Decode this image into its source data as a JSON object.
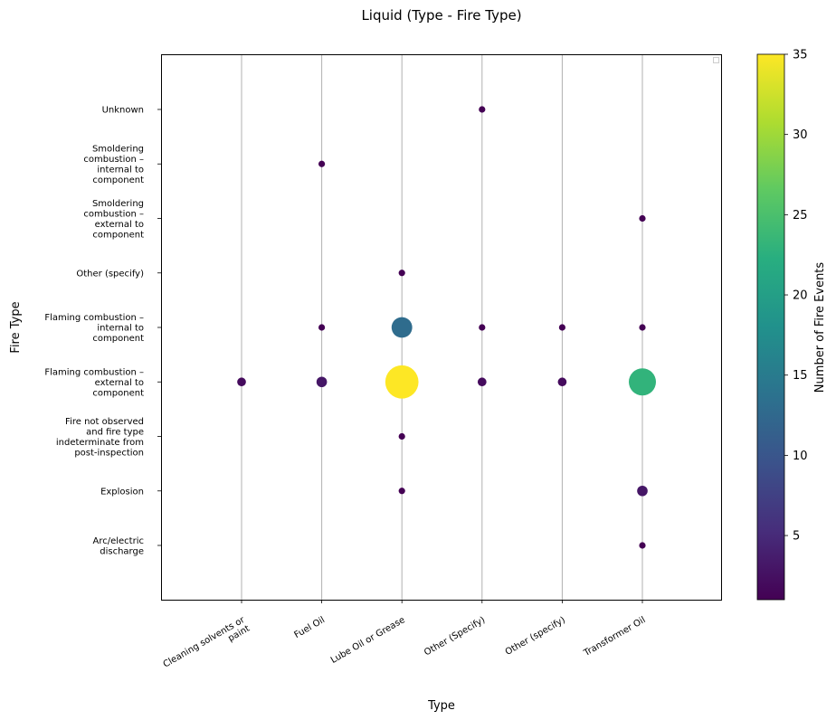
{
  "chart_data": {
    "type": "scatter",
    "title": "Liquid (Type - Fire Type)",
    "xlabel": "Type",
    "ylabel": "Fire Type",
    "grid": "vertical",
    "legend_placement": "top-right",
    "x_categories": [
      [
        "Cleaning solvents or",
        "paint"
      ],
      [
        "Fuel Oil"
      ],
      [
        "Lube Oil or Grease"
      ],
      [
        "Other (Specify)"
      ],
      [
        "Other (specify)"
      ],
      [
        "Transformer Oil"
      ]
    ],
    "y_categories": [
      [
        "Arc/electric",
        "discharge"
      ],
      [
        "Explosion"
      ],
      [
        "Fire not observed",
        "and fire type",
        "indeterminate from",
        "post-inspection"
      ],
      [
        "Flaming combustion –",
        "external to",
        "component"
      ],
      [
        "Flaming combustion –",
        "internal to",
        "component"
      ],
      [
        "Other (specify)"
      ],
      [
        "Smoldering",
        "combustion –",
        "external to",
        "component"
      ],
      [
        "Smoldering",
        "combustion –",
        "internal to",
        "component"
      ],
      [
        "Unknown"
      ]
    ],
    "points": [
      {
        "x": 0,
        "y": 3,
        "count": 2
      },
      {
        "x": 1,
        "y": 3,
        "count": 3
      },
      {
        "x": 1,
        "y": 4,
        "count": 1
      },
      {
        "x": 1,
        "y": 7,
        "count": 1
      },
      {
        "x": 2,
        "y": 1,
        "count": 1
      },
      {
        "x": 2,
        "y": 2,
        "count": 1
      },
      {
        "x": 2,
        "y": 3,
        "count": 35
      },
      {
        "x": 2,
        "y": 4,
        "count": 13
      },
      {
        "x": 2,
        "y": 5,
        "count": 1
      },
      {
        "x": 3,
        "y": 3,
        "count": 2
      },
      {
        "x": 3,
        "y": 4,
        "count": 1
      },
      {
        "x": 3,
        "y": 8,
        "count": 1
      },
      {
        "x": 4,
        "y": 3,
        "count": 2
      },
      {
        "x": 4,
        "y": 4,
        "count": 1
      },
      {
        "x": 5,
        "y": 0,
        "count": 1
      },
      {
        "x": 5,
        "y": 1,
        "count": 3
      },
      {
        "x": 5,
        "y": 3,
        "count": 23
      },
      {
        "x": 5,
        "y": 4,
        "count": 1
      },
      {
        "x": 5,
        "y": 6,
        "count": 1
      }
    ],
    "colorbar": {
      "label": "Number of Fire Events",
      "min": 1,
      "max": 35,
      "ticks": [
        5,
        10,
        15,
        20,
        25,
        30,
        35
      ],
      "colormap": "viridis"
    }
  }
}
